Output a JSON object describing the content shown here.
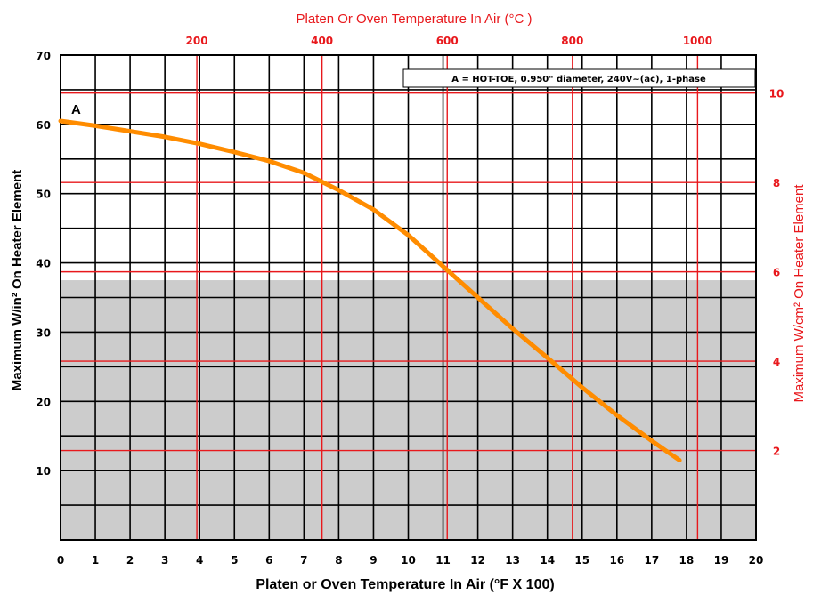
{
  "chart_data": {
    "type": "line",
    "top_title": "Platen Or Oven Temperature In Air (°C )",
    "xlabel": "Platen or Oven Temperature In Air (°F X 100)",
    "ylabel_left": "Maximum W/in² On Heater Element",
    "ylabel_right": "Maximum W/cm² On Heater Element",
    "legend_text": "A = HOT-TOE, 0.950\" diameter, 240V~(ac), 1-phase",
    "series_label": "A",
    "xlim": [
      0,
      20
    ],
    "ylim": [
      0,
      70
    ],
    "x_ticks": [
      "0",
      "1",
      "2",
      "3",
      "4",
      "5",
      "6",
      "7",
      "8",
      "9",
      "10",
      "11",
      "12",
      "13",
      "14",
      "15",
      "16",
      "17",
      "18",
      "19",
      "20"
    ],
    "y_ticks": [
      "10",
      "20",
      "30",
      "40",
      "50",
      "60",
      "70"
    ],
    "top_ticks": [
      "200",
      "400",
      "600",
      "800",
      "1000"
    ],
    "right_ticks": [
      "2",
      "4",
      "6",
      "8",
      "10"
    ],
    "shaded_below": 37.5,
    "series": [
      {
        "x": [
          0,
          1,
          2,
          3,
          4,
          5,
          6,
          7,
          8,
          9,
          10,
          11,
          12,
          13,
          14,
          15,
          16,
          17,
          17.8
        ],
        "values": [
          60.5,
          59.8,
          59.0,
          58.2,
          57.2,
          56.0,
          54.7,
          53.0,
          50.5,
          47.7,
          44.0,
          39.5,
          35.0,
          30.5,
          26.3,
          22.0,
          18.0,
          14.3,
          11.5
        ],
        "color": "#ff8c00"
      }
    ],
    "colors": {
      "grid_black": "#000000",
      "grid_red": "#e8181c",
      "shade": "#cccccc",
      "curve": "#ff8c00"
    }
  }
}
